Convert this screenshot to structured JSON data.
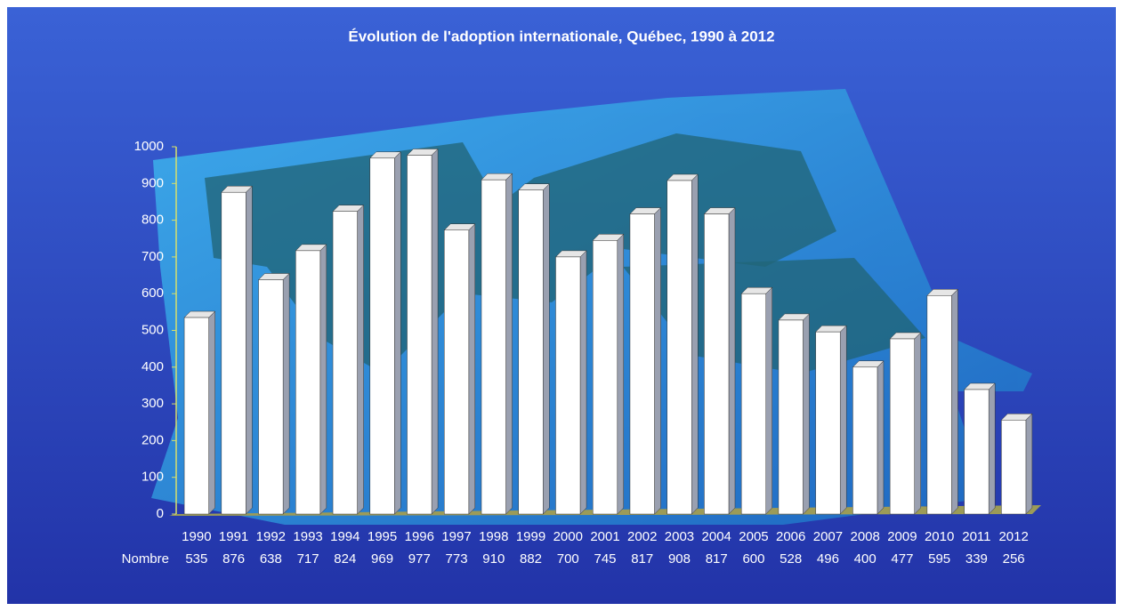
{
  "chart_data": {
    "type": "bar3d",
    "title": "Évolution de l'adoption internationale, Québec, 1990 à 2012",
    "categories": [
      "1990",
      "1991",
      "1992",
      "1993",
      "1994",
      "1995",
      "1996",
      "1997",
      "1998",
      "1999",
      "2000",
      "2001",
      "2002",
      "2003",
      "2004",
      "2005",
      "2006",
      "2007",
      "2008",
      "2009",
      "2010",
      "2011",
      "2012"
    ],
    "series": [
      {
        "name": "Nombre",
        "color": "#ffffff",
        "values": [
          535,
          876,
          638,
          717,
          824,
          969,
          977,
          773,
          910,
          882,
          700,
          745,
          817,
          908,
          817,
          600,
          528,
          496,
          400,
          477,
          595,
          339,
          256
        ]
      }
    ],
    "ylim": [
      0,
      1000
    ],
    "yticks": [
      0,
      100,
      200,
      300,
      400,
      500,
      600,
      700,
      800,
      900,
      1000
    ],
    "grid": false
  }
}
